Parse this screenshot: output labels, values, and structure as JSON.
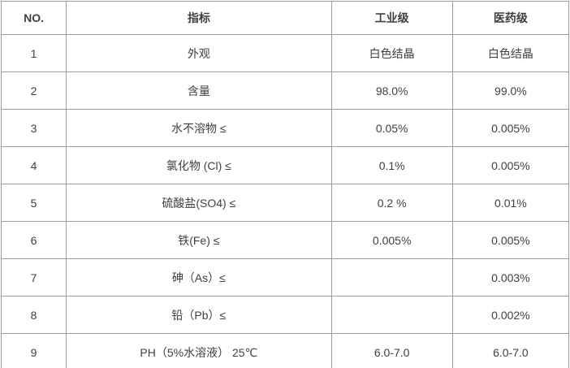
{
  "table": {
    "headers": {
      "no": "NO.",
      "indicator": "指标",
      "industrial": "工业级",
      "pharma": "医药级"
    },
    "rows": [
      {
        "no": "1",
        "indicator": "外观",
        "industrial": "白色结晶",
        "pharma": "白色结晶"
      },
      {
        "no": "2",
        "indicator": "含量",
        "industrial": "98.0%",
        "pharma": "99.0%"
      },
      {
        "no": "3",
        "indicator": "水不溶物 ≤",
        "industrial": "0.05%",
        "pharma": "0.005%"
      },
      {
        "no": "4",
        "indicator": "氯化物 (Cl) ≤",
        "industrial": "0.1%",
        "pharma": "0.005%"
      },
      {
        "no": "5",
        "indicator": "硫酸盐(SO4) ≤",
        "industrial": "0.2 %",
        "pharma": "0.01%"
      },
      {
        "no": "6",
        "indicator": "铁(Fe) ≤",
        "industrial": "0.005%",
        "pharma": "0.005%"
      },
      {
        "no": "7",
        "indicator": "砷（As）≤",
        "industrial": "",
        "pharma": "0.003%"
      },
      {
        "no": "8",
        "indicator": "铅（Pb）≤",
        "industrial": "",
        "pharma": "0.002%"
      },
      {
        "no": "9",
        "indicator": "PH（5%水溶液） 25℃",
        "industrial": "6.0-7.0",
        "pharma": "6.0-7.0"
      }
    ],
    "colors": {
      "border": "#9d9d9d",
      "text": "#404040",
      "background": "#ffffff"
    }
  }
}
